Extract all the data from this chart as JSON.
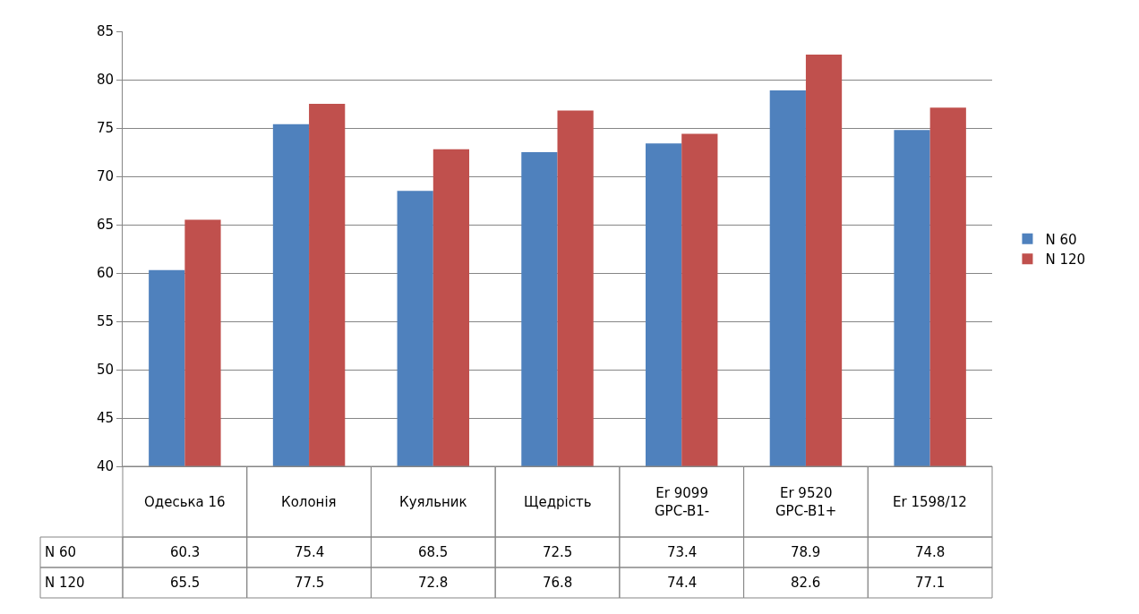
{
  "chart_data": {
    "type": "bar",
    "categories": [
      "Одеська 16",
      "Колонія",
      "Куяльник",
      "Щедрість",
      "Er 9099 GPC-B1-",
      "Er 9520 GPC-B1+",
      "Er 1598/12"
    ],
    "series": [
      {
        "name": "N 60",
        "color": "#4f81bd",
        "values": [
          60.3,
          75.4,
          68.5,
          72.5,
          73.4,
          78.9,
          74.8
        ]
      },
      {
        "name": "N 120",
        "color": "#c0504d",
        "values": [
          65.5,
          77.5,
          72.8,
          76.8,
          74.4,
          82.6,
          77.1
        ]
      }
    ],
    "ylim": [
      40,
      85
    ],
    "yticks": [
      40,
      45,
      50,
      55,
      60,
      65,
      70,
      75,
      80,
      85
    ],
    "grid": "y",
    "legend": "right",
    "data_labels": true
  }
}
